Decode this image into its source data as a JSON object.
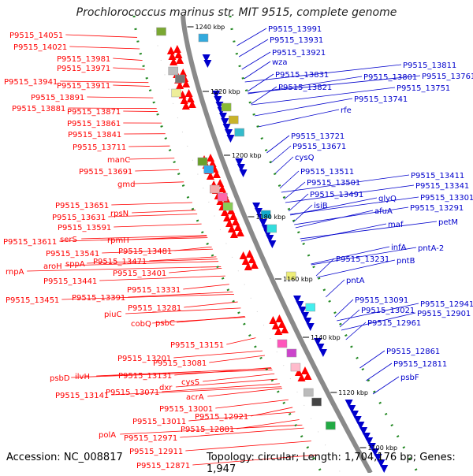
{
  "title": "Prochlorococcus marinus str. MIT 9515, complete genome",
  "footer": {
    "accession": "Accession: NC_008817",
    "summary": "Topology: circular; Length: 1,704,176 bp; Genes: 1,947"
  },
  "colors": {
    "forward": "#ff0000",
    "reverse": "#0000cc",
    "backbone": "#8a8a8a",
    "ticks": "#228822"
  },
  "scale_labels": [
    "1240 kbp",
    "1220 kbp",
    "1200 kbp",
    "1180 kbp",
    "1160 kbp",
    "1140 kbp",
    "1120 kbp",
    "1100 kbp"
  ],
  "left_labels": [
    "P9515_14051",
    "P9515_14021",
    "P9515_13981",
    "P9515_13971",
    "P9515_13941",
    "P9515_13911",
    "P9515_13891",
    "P9515_13881",
    "P9515_13871",
    "P9515_13861",
    "P9515_13841",
    "P9515_13711",
    "manC",
    "P9515_13691",
    "gmd",
    "P9515_13651",
    "P9515_13631",
    "rpsN",
    "P9515_13591",
    "serS",
    "P9515_13611",
    "rpmH",
    "P9515_13541",
    "P9515_13481",
    "rnpA",
    "aroH",
    "sppA",
    "P9515_13471",
    "P9515_13441",
    "P9515_13401",
    "P9515_13451",
    "P9515_13391",
    "P9515_13331",
    "piuC",
    "P9515_13281",
    "cobQ",
    "psbC",
    "P9515_13151",
    "P9515_13201",
    "psbD",
    "ilvH",
    "P9515_13131",
    "P9515_13081",
    "P9515_13141",
    "P9515_13071",
    "dxr",
    "cysS",
    "acrA",
    "P9515_13001",
    "P9515_13011",
    "P9515_12921",
    "P9515_12881",
    "polA",
    "P9515_12971",
    "P9515_12911",
    "P9515_12871"
  ],
  "right_labels": [
    "P9515_13991",
    "P9515_13931",
    "P9515_13921",
    "wza",
    "P9515_13811",
    "P9515_13831",
    "P9515_13801",
    "P9515_13761",
    "P9515_13821",
    "P9515_13751",
    "P9515_13741",
    "rfe",
    "P9515_13721",
    "P9515_13671",
    "cysQ",
    "P9515_13511",
    "P9515_13411",
    "P9515_13501",
    "P9515_13341",
    "P9515_13491",
    "glyQ",
    "P9515_13301",
    "isiB",
    "afuA",
    "P9515_13291",
    "maf",
    "petM",
    "infA",
    "pntA-2",
    "P9515_13231",
    "pntB",
    "pntA",
    "P9515_13091",
    "P9515_12941",
    "P9515_13021",
    "P9515_12901",
    "P9515_12961",
    "P9515_12861",
    "P9515_12811",
    "psbF"
  ]
}
